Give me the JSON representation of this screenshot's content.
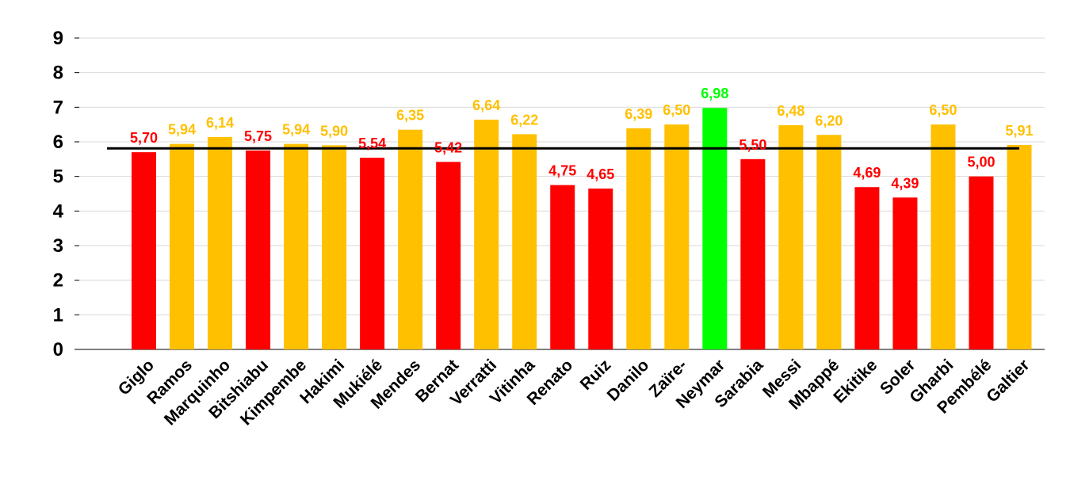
{
  "chart_data": {
    "type": "bar",
    "title": "",
    "xlabel": "",
    "ylabel": "",
    "ylim": [
      0,
      9
    ],
    "yticks": [
      0,
      1,
      2,
      3,
      4,
      5,
      6,
      7,
      8,
      9
    ],
    "grid": true,
    "legend": "none",
    "reference_line": 5.81,
    "categories": [
      "Giglo",
      "Ramos",
      "Marquinho",
      "Bitshiabu",
      "Kimpembe",
      "Hakimi",
      "Mukiélé",
      "Mendes",
      "Bernat",
      "Verratti",
      "Vitinha",
      "Renato",
      "Ruiz",
      "Danilo",
      "Zaïre-",
      "Neymar",
      "Sarabia",
      "Messi",
      "Mbappé",
      "Ekitike",
      "Soler",
      "Gharbi",
      "Pembélé",
      "Galtier"
    ],
    "values": [
      5.7,
      5.94,
      6.14,
      5.75,
      5.94,
      5.9,
      5.54,
      6.35,
      5.42,
      6.64,
      6.22,
      4.75,
      4.65,
      6.39,
      6.5,
      6.98,
      5.5,
      6.48,
      6.2,
      4.69,
      4.39,
      6.5,
      5.0,
      5.91
    ],
    "labels": [
      "5,70",
      "5,94",
      "6,14",
      "5,75",
      "5,94",
      "5,90",
      "5,54",
      "6,35",
      "5,42",
      "6,64",
      "6,22",
      "4,75",
      "4,65",
      "6,39",
      "6,50",
      "6,98",
      "5,50",
      "6,48",
      "6,20",
      "4,69",
      "4,39",
      "6,50",
      "5,00",
      "5,91"
    ],
    "bar_colors": [
      "#ff0000",
      "#ffc000",
      "#ffc000",
      "#ff0000",
      "#ffc000",
      "#ffc000",
      "#ff0000",
      "#ffc000",
      "#ff0000",
      "#ffc000",
      "#ffc000",
      "#ff0000",
      "#ff0000",
      "#ffc000",
      "#ffc000",
      "#00ff00",
      "#ff0000",
      "#ffc000",
      "#ffc000",
      "#ff0000",
      "#ff0000",
      "#ffc000",
      "#ff0000",
      "#ffc000"
    ],
    "colors": {
      "below_line": "#ff0000",
      "above_line": "#ffc000",
      "best": "#00ff00",
      "reference_line": "#000000",
      "grid": "#d9d9d9"
    }
  }
}
